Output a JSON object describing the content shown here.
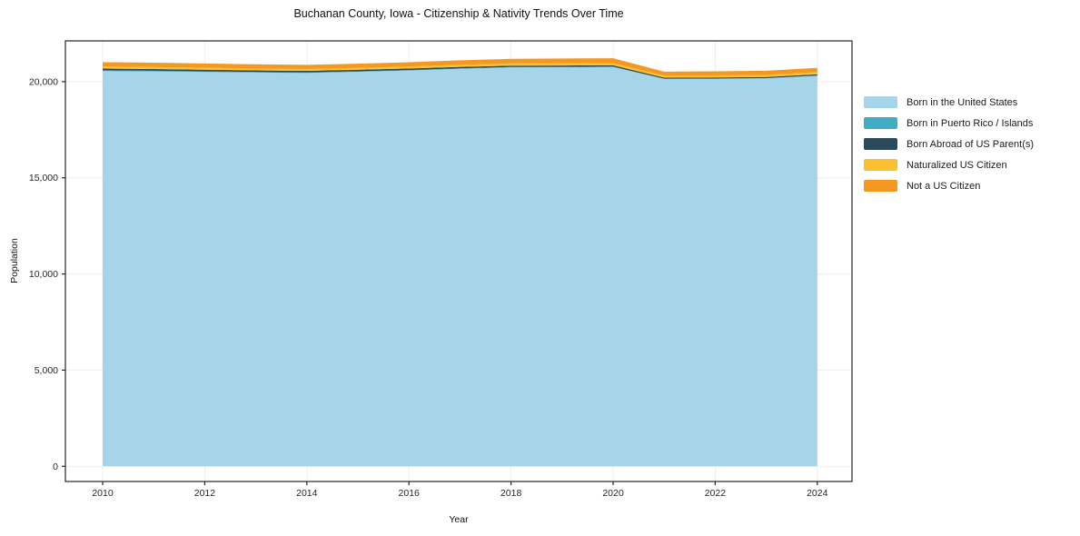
{
  "chart": {
    "title": "Buchanan County, Iowa - Citizenship & Nativity Trends Over Time",
    "xlabel": "Year",
    "ylabel": "Population"
  },
  "chart_data": {
    "type": "area",
    "stacked": true,
    "title": "Buchanan County, Iowa - Citizenship & Nativity Trends Over Time",
    "xlabel": "Year",
    "ylabel": "Population",
    "x": [
      2010,
      2011,
      2012,
      2013,
      2014,
      2015,
      2016,
      2017,
      2018,
      2019,
      2020,
      2021,
      2022,
      2023,
      2024
    ],
    "series": [
      {
        "name": "Born in the United States",
        "color": "#A6D4E8",
        "values": [
          20550,
          20530,
          20500,
          20470,
          20450,
          20510,
          20580,
          20670,
          20740,
          20750,
          20760,
          20140,
          20150,
          20170,
          20300
        ]
      },
      {
        "name": "Born in Puerto Rico / Islands",
        "color": "#41ACC4",
        "values": [
          40,
          38,
          35,
          32,
          30,
          28,
          25,
          22,
          20,
          18,
          18,
          12,
          12,
          14,
          18
        ]
      },
      {
        "name": "Born Abroad of US Parent(s)",
        "color": "#2A4A5C",
        "values": [
          90,
          88,
          86,
          84,
          82,
          80,
          78,
          76,
          74,
          72,
          70,
          58,
          58,
          60,
          64
        ]
      },
      {
        "name": "Naturalized US Citizen",
        "color": "#FBC02D",
        "values": [
          105,
          102,
          100,
          98,
          96,
          98,
          102,
          106,
          110,
          112,
          114,
          100,
          102,
          105,
          110
        ]
      },
      {
        "name": "Not a US Citizen",
        "color": "#F59821",
        "values": [
          230,
          226,
          222,
          218,
          214,
          218,
          226,
          236,
          246,
          252,
          256,
          212,
          215,
          218,
          225
        ]
      }
    ],
    "xlim": [
      2009.27,
      2024.68
    ],
    "ylim": [
      -790,
      22120
    ],
    "xticks": {
      "values": [
        2010,
        2012,
        2014,
        2016,
        2018,
        2020,
        2022,
        2024
      ],
      "labels": [
        "2010",
        "2012",
        "2014",
        "2016",
        "2018",
        "2020",
        "2022",
        "2024"
      ]
    },
    "yticks": {
      "values": [
        0,
        5000,
        10000,
        15000,
        20000
      ],
      "labels": [
        "0",
        "5,000",
        "10,000",
        "15,000",
        "20,000"
      ]
    },
    "grid": true,
    "grid_color": "#efefef",
    "frame_color": "#262626",
    "tick_label_color": "#262626",
    "legend_position": "right-outside"
  }
}
